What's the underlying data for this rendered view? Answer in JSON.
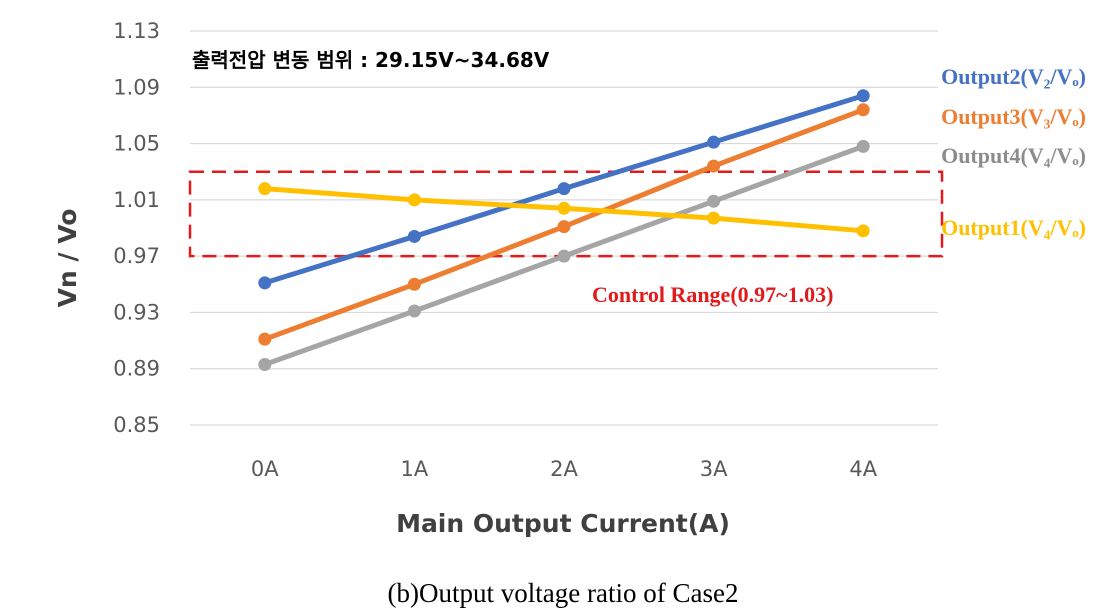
{
  "chart_data": {
    "type": "line",
    "title": "",
    "xlabel": "Main Output Current(A)",
    "ylabel": "Vn / Vo",
    "categories": [
      "0A",
      "1A",
      "2A",
      "3A",
      "4A"
    ],
    "ylim": [
      0.85,
      1.13
    ],
    "yticks": [
      "1.13",
      "1.09",
      "1.05",
      "1.01",
      "0.97",
      "0.93",
      "0.89",
      "0.85"
    ],
    "grid": "horizontal",
    "series": [
      {
        "name": "Output2(V₂/Vₒ)",
        "color": "#4472C4",
        "values": [
          0.951,
          0.984,
          1.018,
          1.051,
          1.084
        ]
      },
      {
        "name": "Output3(V₃/Vₒ)",
        "color": "#ED7D31",
        "values": [
          0.911,
          0.95,
          0.991,
          1.034,
          1.074
        ]
      },
      {
        "name": "Output4(V₄/Vₒ)",
        "color": "#A5A5A5",
        "values": [
          0.893,
          0.931,
          0.97,
          1.009,
          1.048
        ]
      },
      {
        "name": "Output1(V₄/Vₒ)",
        "color": "#FFC000",
        "values": [
          1.018,
          1.01,
          1.004,
          0.997,
          0.988
        ]
      }
    ],
    "annotations": {
      "voltage_range_text": "출력전압 변동 범위 : 29.15V~34.68V",
      "control_range": {
        "label": "Control Range(0.97~1.03)",
        "min": 0.97,
        "max": 1.03,
        "color": "#E31A1C"
      }
    }
  },
  "caption": "(b)Output  voltage  ratio  of  Case2"
}
